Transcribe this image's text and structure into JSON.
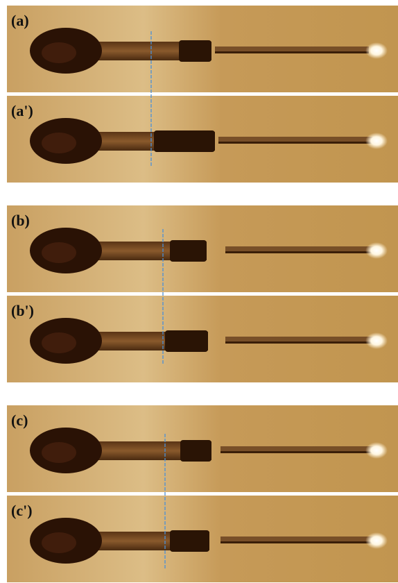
{
  "panels": [
    {
      "label": "(a)"
    },
    {
      "label": "(a')"
    },
    {
      "label": "(b)"
    },
    {
      "label": "(b')"
    },
    {
      "label": "(c)"
    },
    {
      "label": "(c')"
    }
  ]
}
